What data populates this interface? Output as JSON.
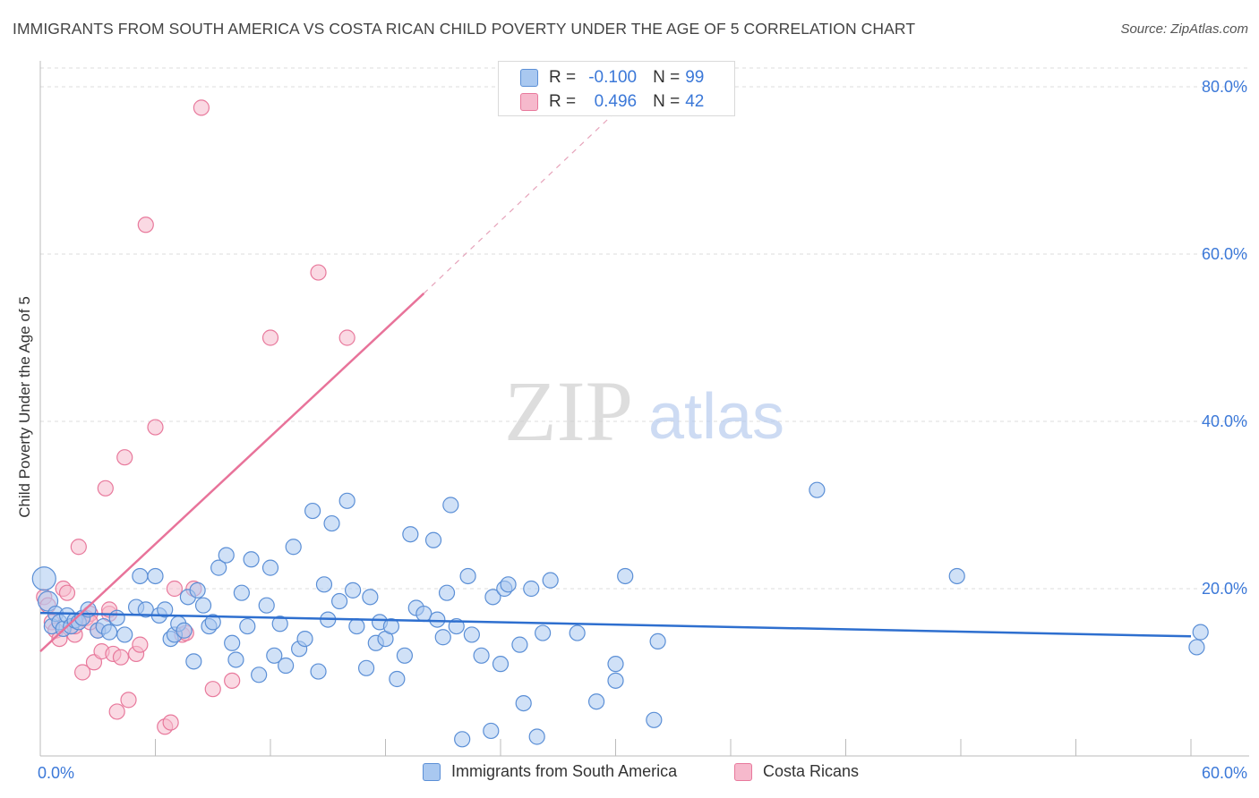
{
  "title": "IMMIGRANTS FROM SOUTH AMERICA VS COSTA RICAN CHILD POVERTY UNDER THE AGE OF 5 CORRELATION CHART",
  "source": "Source: ZipAtlas.com",
  "watermark": {
    "zip": "ZIP",
    "atlas": "atlas"
  },
  "colors": {
    "blue_fill": "#a9c8f0",
    "blue_stroke": "#5b8fd6",
    "blue_line": "#2e6fcf",
    "pink_fill": "#f6b9cc",
    "pink_stroke": "#e8799c",
    "pink_line": "#e8739a",
    "axis_text": "#3b78d8",
    "grid": "#dddddd"
  },
  "stats_legend": {
    "rows": [
      {
        "r_label": "R =",
        "r_value": "-0.100",
        "n_label": "N =",
        "n_value": "99",
        "color": "blue"
      },
      {
        "r_label": "R =",
        "r_value": "0.496",
        "n_label": "N =",
        "n_value": "42",
        "color": "pink"
      }
    ]
  },
  "chart_data": {
    "type": "scatter",
    "title": "IMMIGRANTS FROM SOUTH AMERICA VS COSTA RICAN CHILD POVERTY UNDER THE AGE OF 5 CORRELATION CHART",
    "xlabel": "",
    "ylabel": "Child Poverty Under the Age of 5",
    "xlim": [
      0,
      0.6
    ],
    "ylim": [
      0,
      0.82
    ],
    "x_tick_labels": [
      "0.0%",
      "60.0%"
    ],
    "y_ticks": [
      0.2,
      0.4,
      0.6,
      0.8
    ],
    "y_tick_labels": [
      "20.0%",
      "40.0%",
      "60.0%",
      "80.0%"
    ],
    "grid": true,
    "legend_position": "bottom",
    "series": [
      {
        "name": "Immigrants from South America",
        "color": "blue",
        "trend": {
          "x0": 0.0,
          "y0": 0.171,
          "x1": 0.6,
          "y1": 0.143
        },
        "points": [
          [
            0.002,
            0.212
          ],
          [
            0.004,
            0.185
          ],
          [
            0.006,
            0.155
          ],
          [
            0.008,
            0.17
          ],
          [
            0.01,
            0.16
          ],
          [
            0.012,
            0.152
          ],
          [
            0.014,
            0.168
          ],
          [
            0.016,
            0.155
          ],
          [
            0.018,
            0.162
          ],
          [
            0.02,
            0.16
          ],
          [
            0.022,
            0.165
          ],
          [
            0.025,
            0.175
          ],
          [
            0.03,
            0.15
          ],
          [
            0.033,
            0.155
          ],
          [
            0.036,
            0.148
          ],
          [
            0.04,
            0.165
          ],
          [
            0.044,
            0.145
          ],
          [
            0.05,
            0.178
          ],
          [
            0.052,
            0.215
          ],
          [
            0.055,
            0.175
          ],
          [
            0.06,
            0.215
          ],
          [
            0.062,
            0.168
          ],
          [
            0.065,
            0.175
          ],
          [
            0.068,
            0.14
          ],
          [
            0.07,
            0.145
          ],
          [
            0.072,
            0.158
          ],
          [
            0.075,
            0.15
          ],
          [
            0.077,
            0.19
          ],
          [
            0.08,
            0.113
          ],
          [
            0.082,
            0.198
          ],
          [
            0.085,
            0.18
          ],
          [
            0.088,
            0.155
          ],
          [
            0.09,
            0.16
          ],
          [
            0.093,
            0.225
          ],
          [
            0.097,
            0.24
          ],
          [
            0.1,
            0.135
          ],
          [
            0.102,
            0.115
          ],
          [
            0.105,
            0.195
          ],
          [
            0.108,
            0.155
          ],
          [
            0.11,
            0.235
          ],
          [
            0.114,
            0.097
          ],
          [
            0.118,
            0.18
          ],
          [
            0.12,
            0.225
          ],
          [
            0.122,
            0.12
          ],
          [
            0.125,
            0.158
          ],
          [
            0.128,
            0.108
          ],
          [
            0.132,
            0.25
          ],
          [
            0.135,
            0.128
          ],
          [
            0.138,
            0.14
          ],
          [
            0.142,
            0.293
          ],
          [
            0.145,
            0.101
          ],
          [
            0.148,
            0.205
          ],
          [
            0.15,
            0.163
          ],
          [
            0.152,
            0.278
          ],
          [
            0.156,
            0.185
          ],
          [
            0.16,
            0.305
          ],
          [
            0.163,
            0.198
          ],
          [
            0.165,
            0.155
          ],
          [
            0.17,
            0.105
          ],
          [
            0.172,
            0.19
          ],
          [
            0.175,
            0.135
          ],
          [
            0.177,
            0.16
          ],
          [
            0.18,
            0.14
          ],
          [
            0.183,
            0.155
          ],
          [
            0.186,
            0.092
          ],
          [
            0.19,
            0.12
          ],
          [
            0.193,
            0.265
          ],
          [
            0.196,
            0.177
          ],
          [
            0.2,
            0.17
          ],
          [
            0.205,
            0.258
          ],
          [
            0.207,
            0.163
          ],
          [
            0.21,
            0.142
          ],
          [
            0.212,
            0.195
          ],
          [
            0.214,
            0.3
          ],
          [
            0.217,
            0.155
          ],
          [
            0.22,
            0.02
          ],
          [
            0.223,
            0.215
          ],
          [
            0.225,
            0.145
          ],
          [
            0.23,
            0.12
          ],
          [
            0.235,
            0.03
          ],
          [
            0.236,
            0.19
          ],
          [
            0.24,
            0.11
          ],
          [
            0.242,
            0.2
          ],
          [
            0.244,
            0.205
          ],
          [
            0.25,
            0.133
          ],
          [
            0.252,
            0.063
          ],
          [
            0.256,
            0.2
          ],
          [
            0.259,
            0.023
          ],
          [
            0.262,
            0.147
          ],
          [
            0.266,
            0.21
          ],
          [
            0.28,
            0.147
          ],
          [
            0.29,
            0.065
          ],
          [
            0.3,
            0.09
          ],
          [
            0.305,
            0.215
          ],
          [
            0.3,
            0.11
          ],
          [
            0.32,
            0.043
          ],
          [
            0.322,
            0.137
          ],
          [
            0.405,
            0.318
          ],
          [
            0.478,
            0.215
          ],
          [
            0.603,
            0.13
          ],
          [
            0.605,
            0.148
          ]
        ]
      },
      {
        "name": "Costa Ricans",
        "color": "pink",
        "trend": {
          "x0": 0.0,
          "y0": 0.125,
          "x1": 0.2,
          "y1": 0.553,
          "extends_dashed_to": {
            "x": 0.3,
            "y": 0.77
          }
        },
        "points": [
          [
            0.002,
            0.19
          ],
          [
            0.004,
            0.18
          ],
          [
            0.006,
            0.16
          ],
          [
            0.008,
            0.15
          ],
          [
            0.01,
            0.14
          ],
          [
            0.012,
            0.2
          ],
          [
            0.014,
            0.195
          ],
          [
            0.016,
            0.155
          ],
          [
            0.018,
            0.145
          ],
          [
            0.02,
            0.25
          ],
          [
            0.022,
            0.1
          ],
          [
            0.024,
            0.165
          ],
          [
            0.026,
            0.17
          ],
          [
            0.028,
            0.112
          ],
          [
            0.03,
            0.15
          ],
          [
            0.032,
            0.125
          ],
          [
            0.034,
            0.32
          ],
          [
            0.036,
            0.17
          ],
          [
            0.038,
            0.122
          ],
          [
            0.04,
            0.053
          ],
          [
            0.042,
            0.118
          ],
          [
            0.044,
            0.357
          ],
          [
            0.046,
            0.067
          ],
          [
            0.05,
            0.122
          ],
          [
            0.052,
            0.133
          ],
          [
            0.055,
            0.635
          ],
          [
            0.06,
            0.393
          ],
          [
            0.065,
            0.035
          ],
          [
            0.068,
            0.04
          ],
          [
            0.07,
            0.2
          ],
          [
            0.074,
            0.145
          ],
          [
            0.076,
            0.147
          ],
          [
            0.08,
            0.2
          ],
          [
            0.084,
            0.775
          ],
          [
            0.09,
            0.08
          ],
          [
            0.1,
            0.09
          ],
          [
            0.12,
            0.5
          ],
          [
            0.145,
            0.578
          ],
          [
            0.16,
            0.5
          ],
          [
            0.018,
            0.155
          ],
          [
            0.026,
            0.16
          ],
          [
            0.036,
            0.175
          ]
        ]
      }
    ]
  }
}
